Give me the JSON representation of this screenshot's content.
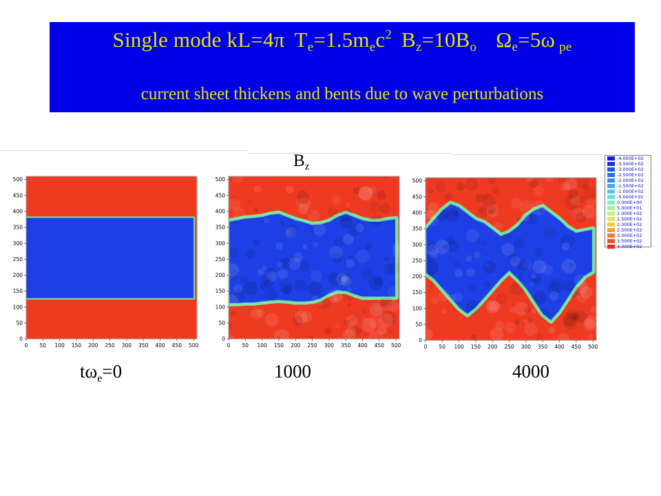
{
  "title": {
    "line1": {
      "mode": "Single mode kL=4π",
      "t_pre": "T",
      "t_sub": "e",
      "t_post": "=1.5m",
      "m_sub": "e",
      "c": "c",
      "c_sup": "2",
      "b_pre": "B",
      "b_sub": "z",
      "b_post": "=10B",
      "bo_sub": "o",
      "om_pre": "Ω",
      "om_sub": "e",
      "om_post": "=5ω",
      "om2_sub": "pe"
    },
    "line2": "current sheet thickens and bents due to wave perturbations"
  },
  "colors": {
    "title_bg": "#0000e6",
    "title_text": "#e6e600",
    "positive": "#ef3a22",
    "negative": "#1d3fe6",
    "boundary_green": "#7de6a0",
    "tick_text": "#000000"
  },
  "chart_data": [
    {
      "type": "heatmap",
      "quantity": "B_z",
      "time": "0",
      "xlim": [
        0,
        510
      ],
      "ylim": [
        0,
        510
      ],
      "xticks": [
        "0",
        "50",
        "100",
        "150",
        "200",
        "250",
        "300",
        "350",
        "400",
        "450",
        "500"
      ],
      "yticks": [
        "0",
        "50",
        "100",
        "150",
        "200",
        "250",
        "300",
        "350",
        "400",
        "450",
        "500"
      ],
      "sheet_lower_y": [
        128,
        128,
        128,
        128,
        128,
        128,
        128,
        128,
        128,
        128,
        128,
        128,
        128,
        128,
        128,
        128,
        128,
        128,
        128,
        128,
        128
      ],
      "sheet_upper_y": [
        380,
        380,
        380,
        380,
        380,
        380,
        380,
        380,
        380,
        380,
        380,
        380,
        380,
        380,
        380,
        380,
        380,
        380,
        380,
        380,
        380
      ],
      "sample_x": [
        0,
        25,
        50,
        75,
        100,
        125,
        150,
        175,
        200,
        225,
        250,
        275,
        300,
        325,
        350,
        375,
        400,
        425,
        450,
        475,
        500
      ],
      "noisy": false
    },
    {
      "type": "heatmap",
      "quantity": "B_z",
      "time": "1000",
      "xlim": [
        0,
        510
      ],
      "ylim": [
        0,
        510
      ],
      "xticks": [
        "0",
        "50",
        "100",
        "150",
        "200",
        "250",
        "300",
        "350",
        "400",
        "450",
        "500"
      ],
      "yticks": [
        "0",
        "50",
        "100",
        "150",
        "200",
        "250",
        "300",
        "350",
        "400",
        "450",
        "500"
      ],
      "sample_x": [
        0,
        25,
        50,
        75,
        100,
        125,
        150,
        175,
        200,
        225,
        250,
        275,
        300,
        325,
        350,
        375,
        400,
        425,
        450,
        475,
        500
      ],
      "sheet_lower_y": [
        110,
        110,
        112,
        112,
        115,
        118,
        120,
        118,
        115,
        115,
        117,
        125,
        140,
        150,
        148,
        138,
        130,
        130,
        130,
        130,
        130
      ],
      "sheet_upper_y": [
        370,
        375,
        380,
        382,
        385,
        392,
        395,
        385,
        375,
        368,
        360,
        362,
        370,
        385,
        395,
        385,
        375,
        370,
        370,
        375,
        378
      ],
      "noisy": true
    },
    {
      "type": "heatmap",
      "quantity": "B_z",
      "time": "4000",
      "xlim": [
        0,
        510
      ],
      "ylim": [
        0,
        510
      ],
      "xticks": [
        "0",
        "50",
        "100",
        "150",
        "200",
        "250",
        "300",
        "350",
        "400",
        "450",
        "500"
      ],
      "yticks": [
        "0",
        "50",
        "100",
        "150",
        "200",
        "250",
        "300",
        "350",
        "400",
        "450",
        "500"
      ],
      "sample_x": [
        0,
        25,
        50,
        75,
        100,
        125,
        150,
        175,
        200,
        225,
        250,
        275,
        300,
        325,
        350,
        375,
        400,
        425,
        450,
        475,
        500
      ],
      "sheet_lower_y": [
        210,
        190,
        160,
        130,
        100,
        80,
        100,
        130,
        160,
        190,
        215,
        190,
        160,
        120,
        80,
        60,
        90,
        130,
        170,
        200,
        215
      ],
      "sheet_upper_y": [
        350,
        380,
        410,
        430,
        420,
        400,
        380,
        370,
        350,
        330,
        340,
        360,
        390,
        410,
        420,
        400,
        380,
        355,
        340,
        345,
        350
      ],
      "noisy": true
    }
  ],
  "plot_label": {
    "main": "B",
    "sub": "z"
  },
  "time_labels": {
    "first_pre": "tω",
    "first_sub": "e",
    "first_post": "=0",
    "second": "1000",
    "third": "4000"
  },
  "legend": {
    "entries": [
      {
        "label": "-4.000E+02",
        "color": "#1818e0"
      },
      {
        "label": "-3.500E+02",
        "color": "#1c32e8"
      },
      {
        "label": "-3.000E+02",
        "color": "#2050ee"
      },
      {
        "label": "-2.500E+02",
        "color": "#2a6cf0"
      },
      {
        "label": "-2.000E+02",
        "color": "#3a8cf2"
      },
      {
        "label": "-1.500E+02",
        "color": "#48a8f0"
      },
      {
        "label": "-1.000E+02",
        "color": "#5cc4ee"
      },
      {
        "label": "-5.000E+01",
        "color": "#70dce0"
      },
      {
        "label": "0.000E+00",
        "color": "#84ecc8"
      },
      {
        "label": "5.000E+01",
        "color": "#a6f0a0"
      },
      {
        "label": "1.000E+02",
        "color": "#c6f07c"
      },
      {
        "label": "1.500E+02",
        "color": "#e0e85a"
      },
      {
        "label": "2.000E+02",
        "color": "#f0c84a"
      },
      {
        "label": "2.500E+02",
        "color": "#f4a040"
      },
      {
        "label": "3.000E+02",
        "color": "#f27a34"
      },
      {
        "label": "3.500E+02",
        "color": "#ee5228"
      },
      {
        "label": "4.000E+02",
        "color": "#ea2c1e"
      }
    ]
  }
}
